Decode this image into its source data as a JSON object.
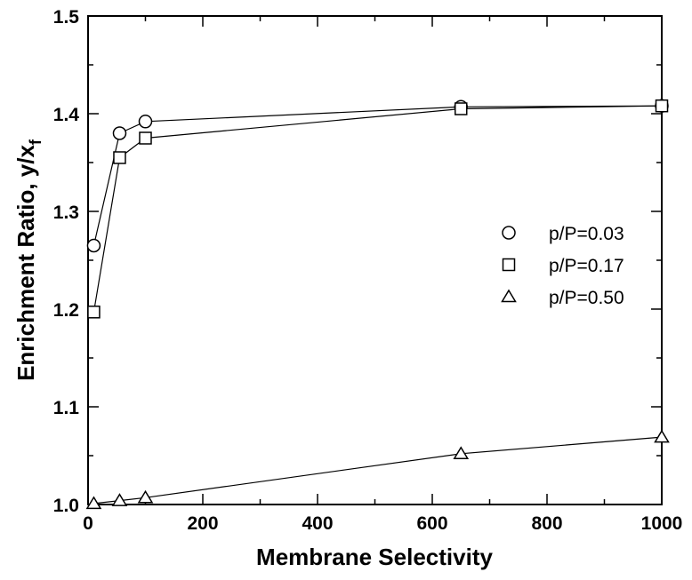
{
  "chart_data": {
    "type": "line",
    "xlabel": "Membrane Selectivity",
    "ylabel_main": "Enrichment Ratio, y/x",
    "ylabel_sub": "f",
    "xlim": [
      0,
      1000
    ],
    "ylim": [
      1.0,
      1.5
    ],
    "xticks": [
      0,
      200,
      400,
      600,
      800,
      1000
    ],
    "xtick_labels": [
      "0",
      "200",
      "400",
      "600",
      "800",
      "1000"
    ],
    "yticks": [
      1.0,
      1.1,
      1.2,
      1.3,
      1.4,
      1.5
    ],
    "ytick_labels": [
      "1.0",
      "1.1",
      "1.2",
      "1.3",
      "1.4",
      "1.5"
    ],
    "grid": false,
    "legend_position": "right",
    "series": [
      {
        "name": "p/P=0.03",
        "marker": "circle",
        "x": [
          10,
          55,
          100,
          650,
          1000
        ],
        "y": [
          1.265,
          1.38,
          1.392,
          1.407,
          1.408
        ]
      },
      {
        "name": "p/P=0.17",
        "marker": "square",
        "x": [
          10,
          55,
          100,
          650,
          1000
        ],
        "y": [
          1.197,
          1.355,
          1.375,
          1.405,
          1.408
        ]
      },
      {
        "name": "p/P=0.50",
        "marker": "triangle",
        "x": [
          10,
          55,
          100,
          650,
          1000
        ],
        "y": [
          1.001,
          1.004,
          1.007,
          1.052,
          1.069
        ]
      }
    ]
  }
}
